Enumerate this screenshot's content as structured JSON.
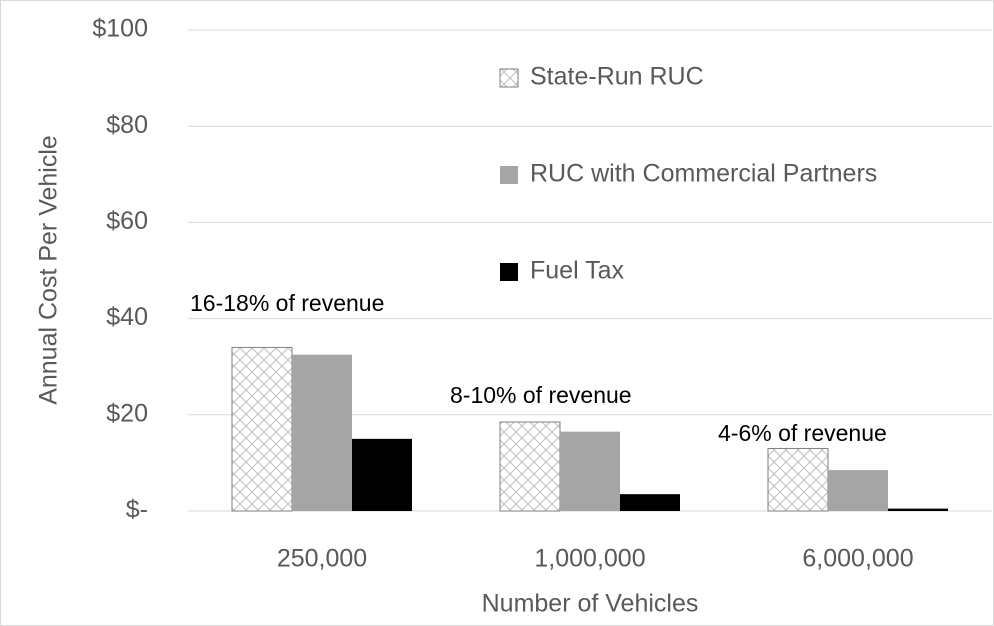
{
  "chart_data": {
    "type": "bar",
    "xlabel": "Number of Vehicles",
    "ylabel": "Annual Cost Per Vehicle",
    "categories": [
      "250,000",
      "1,000,000",
      "6,000,000"
    ],
    "series": [
      {
        "name": "State-Run RUC",
        "color": "#bfbfbf",
        "pattern": "hatch",
        "values": [
          34,
          18.5,
          13
        ]
      },
      {
        "name": "RUC with Commercial Partners",
        "color": "#a5a5a5",
        "values": [
          32.5,
          16.5,
          8.5
        ]
      },
      {
        "name": "Fuel Tax",
        "color": "#000000",
        "values": [
          15,
          3.5,
          0.5
        ]
      }
    ],
    "annotations": [
      "16-18% of revenue",
      "8-10% of revenue",
      "4-6% of revenue"
    ],
    "ylim": [
      0,
      100
    ],
    "yticks": [
      {
        "value": 0,
        "label": "$-"
      },
      {
        "value": 20,
        "label": "$20"
      },
      {
        "value": 40,
        "label": "$40"
      },
      {
        "value": 60,
        "label": "$60"
      },
      {
        "value": 80,
        "label": "$80"
      },
      {
        "value": 100,
        "label": "$100"
      }
    ],
    "grid": true,
    "legend": "upper right"
  }
}
